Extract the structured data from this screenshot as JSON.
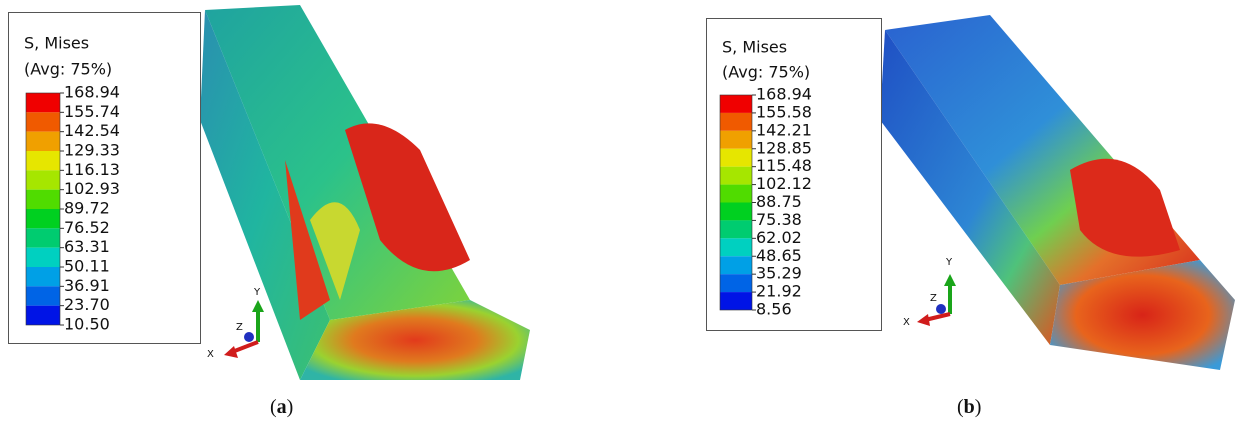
{
  "panels": [
    {
      "legend": {
        "title": "S, Mises",
        "subtitle": "(Avg: 75%)",
        "values": [
          "168.94",
          "155.74",
          "142.54",
          "129.33",
          "116.13",
          "102.93",
          "89.72",
          "76.52",
          "63.31",
          "50.11",
          "36.91",
          "23.70",
          "10.50"
        ]
      },
      "triad": {
        "y": "Y",
        "z": "Z",
        "x": "X"
      },
      "caption": [
        "(",
        "a",
        ")"
      ]
    },
    {
      "legend": {
        "title": "S, Mises",
        "subtitle": "(Avg: 75%)",
        "values": [
          "168.94",
          "155.58",
          "142.21",
          "128.85",
          "115.48",
          "102.12",
          "88.75",
          "75.38",
          "62.02",
          "48.65",
          "35.29",
          "21.92",
          "8.56"
        ]
      },
      "triad": {
        "y": "Y",
        "z": "Z",
        "x": "X"
      },
      "caption": [
        "(",
        "b",
        ")"
      ]
    }
  ]
}
